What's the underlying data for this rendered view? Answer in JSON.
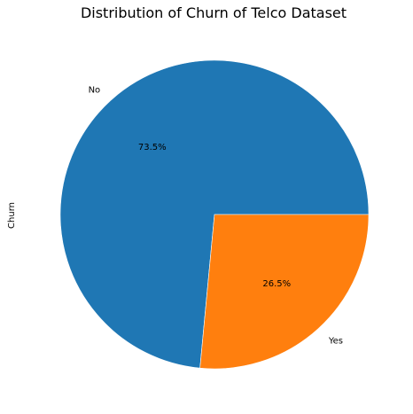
{
  "chart_data": {
    "type": "pie",
    "title": "Distribution of Churn of Telco Dataset",
    "ylabel": "Churn",
    "categories": [
      "No",
      "Yes"
    ],
    "values": [
      73.5,
      26.5
    ],
    "percent_labels": [
      "73.5%",
      "26.5%"
    ],
    "colors": [
      "#1f77b4",
      "#ff7f0e"
    ],
    "start_angle_deg": 0,
    "direction": "counterclockwise",
    "legend": "none"
  }
}
